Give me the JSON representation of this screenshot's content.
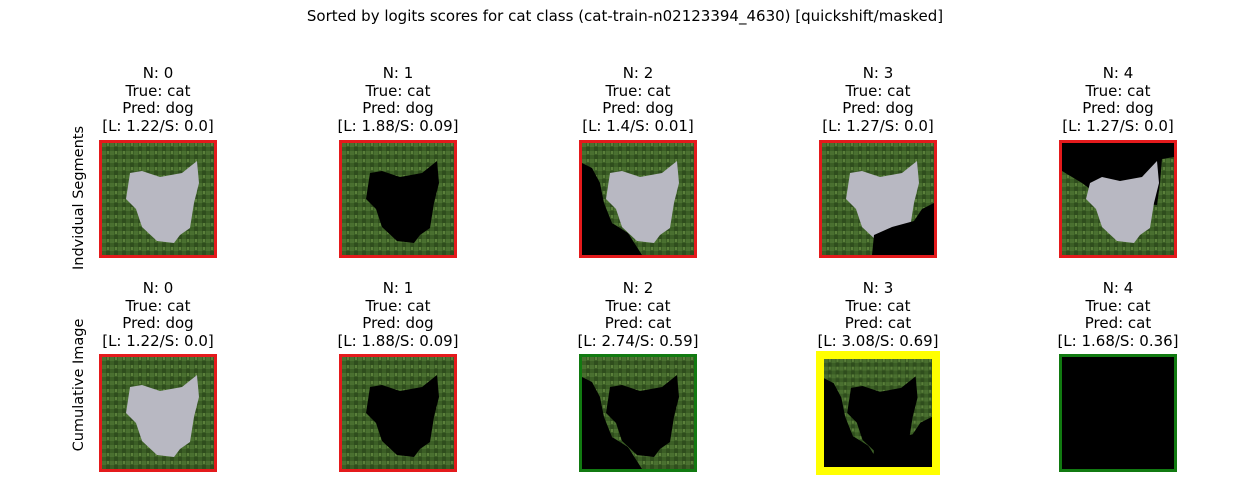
{
  "figure": {
    "title": "Sorted by logits scores for cat class (cat-train-n02123394_4630) [quickshift/masked]"
  },
  "colors": {
    "wrong": "#e41a1c",
    "correct": "#117a11",
    "best": "#ffff00",
    "grass": "#3b5e25",
    "cat": "#b8b8c2"
  },
  "rows": [
    {
      "label": "Indvidual Segments",
      "cells": [
        {
          "n": "N: 0",
          "true": "True: cat",
          "pred": "Pred: dog",
          "scores": "[L: 1.22/S: 0.0]",
          "status": "wrong"
        },
        {
          "n": "N: 1",
          "true": "True: cat",
          "pred": "Pred: dog",
          "scores": "[L: 1.88/S: 0.09]",
          "status": "wrong"
        },
        {
          "n": "N: 2",
          "true": "True: cat",
          "pred": "Pred: dog",
          "scores": "[L: 1.4/S: 0.01]",
          "status": "wrong"
        },
        {
          "n": "N: 3",
          "true": "True: cat",
          "pred": "Pred: dog",
          "scores": "[L: 1.27/S: 0.0]",
          "status": "wrong"
        },
        {
          "n": "N: 4",
          "true": "True: cat",
          "pred": "Pred: dog",
          "scores": "[L: 1.27/S: 0.0]",
          "status": "wrong"
        }
      ]
    },
    {
      "label": "Cumulative Image",
      "cells": [
        {
          "n": "N: 0",
          "true": "True: cat",
          "pred": "Pred: dog",
          "scores": "[L: 1.22/S: 0.0]",
          "status": "wrong"
        },
        {
          "n": "N: 1",
          "true": "True: cat",
          "pred": "Pred: dog",
          "scores": "[L: 1.88/S: 0.09]",
          "status": "wrong"
        },
        {
          "n": "N: 2",
          "true": "True: cat",
          "pred": "Pred: cat",
          "scores": "[L: 2.74/S: 0.59]",
          "status": "correct"
        },
        {
          "n": "N: 3",
          "true": "True: cat",
          "pred": "Pred: cat",
          "scores": "[L: 3.08/S: 0.69]",
          "status": "best"
        },
        {
          "n": "N: 4",
          "true": "True: cat",
          "pred": "Pred: cat",
          "scores": "[L: 1.68/S: 0.36]",
          "status": "correct"
        }
      ]
    }
  ]
}
